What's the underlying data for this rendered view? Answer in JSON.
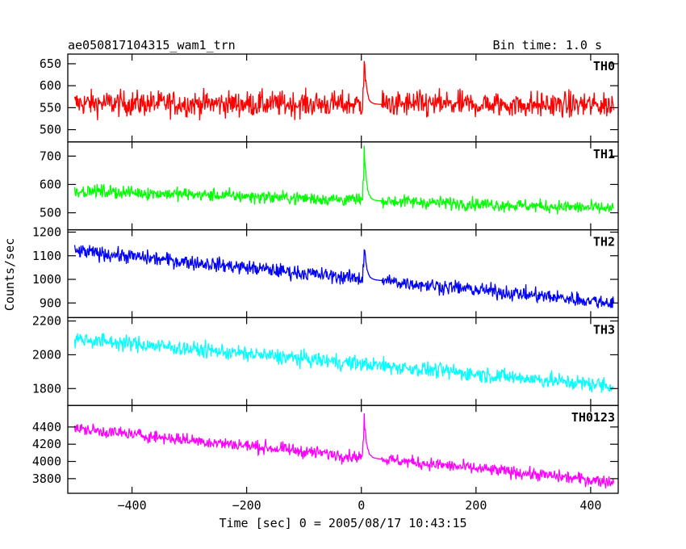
{
  "header": {
    "title": "ae050817104315_wam1_trn",
    "bin_time": "Bin time: 1.0 s"
  },
  "y_axis_label": "Counts/sec",
  "chart_data": {
    "type": "line",
    "xlabel": "Time [sec] 0 = 2005/08/17 10:43:15",
    "xlim": [
      -512,
      448
    ],
    "x_ticks": [
      -400,
      -200,
      0,
      200,
      400
    ],
    "x_tick_labels": [
      "−400",
      "−200",
      "0",
      "200",
      "400"
    ],
    "panels": [
      {
        "name": "TH0",
        "color": "#ff0000",
        "ylim": [
          472,
          672
        ],
        "y_ticks": [
          500,
          550,
          600,
          650
        ],
        "y_tick_labels": [
          "500",
          "550",
          "600",
          "650"
        ],
        "trend": {
          "x": [
            -500,
            440
          ],
          "y": [
            560,
            556
          ]
        },
        "noise_amplitude": 38,
        "spike": {
          "x": 5,
          "peak": 678
        }
      },
      {
        "name": "TH1",
        "color": "#00ff00",
        "ylim": [
          440,
          750
        ],
        "y_ticks": [
          500,
          600,
          700
        ],
        "y_tick_labels": [
          "500",
          "600",
          "700"
        ],
        "trend": {
          "x": [
            -500,
            440
          ],
          "y": [
            578,
            515
          ]
        },
        "noise_amplitude": 30,
        "spike": {
          "x": 5,
          "peak": 760
        }
      },
      {
        "name": "TH2",
        "color": "#0000ff",
        "ylim": [
          838,
          1210
        ],
        "y_ticks": [
          900,
          1000,
          1100,
          1200
        ],
        "y_tick_labels": [
          "900",
          "1000",
          "1100",
          "1200"
        ],
        "trend": {
          "x": [
            -500,
            440
          ],
          "y": [
            1120,
            900
          ]
        },
        "noise_amplitude": 40,
        "spike": {
          "x": 5,
          "peak": 1170
        }
      },
      {
        "name": "TH3",
        "color": "#00ffff",
        "ylim": [
          1700,
          2220
        ],
        "y_ticks": [
          1800,
          2000,
          2200
        ],
        "y_tick_labels": [
          "1800",
          "2000",
          "2200"
        ],
        "trend": {
          "x": [
            -500,
            440
          ],
          "y": [
            2095,
            1815
          ]
        },
        "noise_amplitude": 60,
        "spike": null
      },
      {
        "name": "TH0123",
        "color": "#ff00ff",
        "ylim": [
          3630,
          4650
        ],
        "y_ticks": [
          3800,
          4000,
          4200,
          4400
        ],
        "y_tick_labels": [
          "3800",
          "4000",
          "4200",
          "4400"
        ],
        "trend": {
          "x": [
            -500,
            440
          ],
          "y": [
            4380,
            3760
          ]
        },
        "noise_amplitude": 95,
        "spike": {
          "x": 5,
          "peak": 4620
        }
      }
    ]
  }
}
